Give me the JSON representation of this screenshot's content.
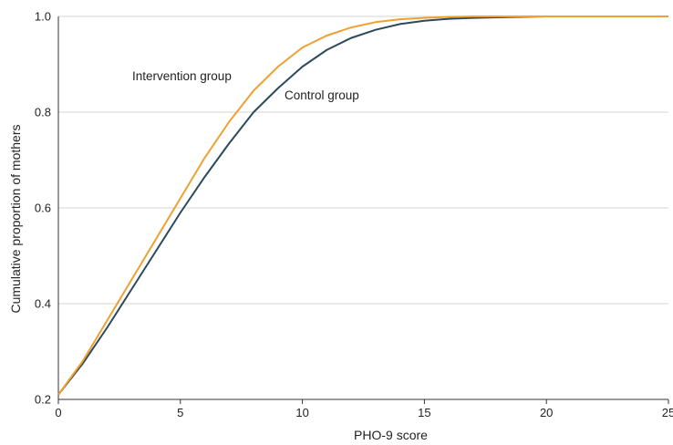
{
  "chart_data": {
    "type": "line",
    "xlabel": "PHO-9 score",
    "ylabel": "Cumulative proportion of mothers",
    "xlim": [
      0,
      25
    ],
    "ylim": [
      0.2,
      1.0
    ],
    "x_ticks": [
      "0",
      "5",
      "10",
      "15",
      "20",
      "25"
    ],
    "y_ticks": [
      "0.2",
      "0.4",
      "0.6",
      "0.8",
      "1.0"
    ],
    "grid": "horizontal",
    "series": [
      {
        "name": "Intervention group",
        "color": "#f0a030",
        "x": [
          0,
          1,
          2,
          3,
          4,
          5,
          6,
          7,
          8,
          9,
          10,
          11,
          12,
          13,
          14,
          15,
          16,
          17,
          18,
          19,
          20,
          21,
          22,
          23,
          24,
          25
        ],
        "y": [
          0.21,
          0.28,
          0.365,
          0.45,
          0.535,
          0.62,
          0.705,
          0.78,
          0.845,
          0.895,
          0.935,
          0.96,
          0.977,
          0.988,
          0.994,
          0.997,
          0.999,
          1.0,
          1.0,
          1.0,
          1.0,
          1.0,
          1.0,
          1.0,
          1.0,
          1.0
        ]
      },
      {
        "name": "Control group",
        "color": "#2b4a5c",
        "x": [
          0,
          1,
          2,
          3,
          4,
          5,
          6,
          7,
          8,
          9,
          10,
          11,
          12,
          13,
          14,
          15,
          16,
          17,
          18,
          19,
          20,
          21,
          22,
          23,
          24,
          25
        ],
        "y": [
          0.21,
          0.275,
          0.35,
          0.43,
          0.51,
          0.59,
          0.665,
          0.735,
          0.8,
          0.85,
          0.895,
          0.93,
          0.955,
          0.972,
          0.984,
          0.991,
          0.995,
          0.997,
          0.998,
          0.999,
          1.0,
          1.0,
          1.0,
          1.0,
          1.0,
          1.0
        ]
      }
    ],
    "annotations": [
      {
        "text": "Intervention group",
        "series": "Intervention group"
      },
      {
        "text": "Control group",
        "series": "Control group"
      }
    ]
  }
}
